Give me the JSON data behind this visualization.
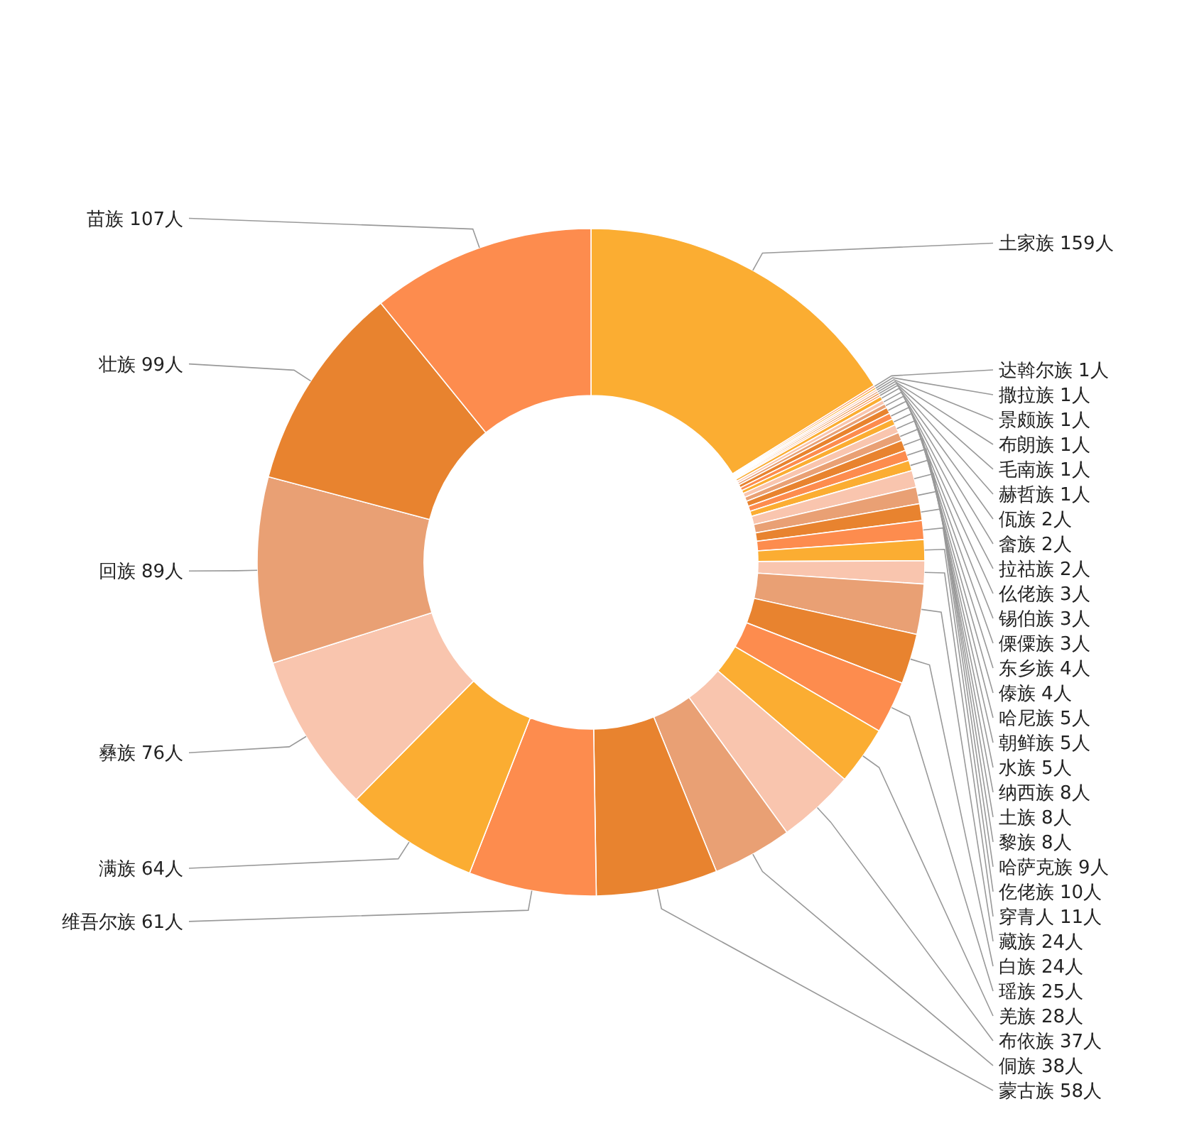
{
  "chart_data": {
    "type": "donut",
    "categories": [
      "土家族",
      "达斡尔族",
      "撒拉族",
      "景颇族",
      "布朗族",
      "毛南族",
      "赫哲族",
      "佤族",
      "畲族",
      "拉祜族",
      "仫佬族",
      "锡伯族",
      "傈僳族",
      "东乡族",
      "傣族",
      "哈尼族",
      "朝鲜族",
      "水族",
      "纳西族",
      "土族",
      "黎族",
      "哈萨克族",
      "仡佬族",
      "穿青人",
      "藏族",
      "白族",
      "瑶族",
      "羌族",
      "布依族",
      "侗族",
      "蒙古族",
      "维吾尔族",
      "满族",
      "彝族",
      "回族",
      "壮族",
      "苗族"
    ],
    "values": [
      159,
      1,
      1,
      1,
      1,
      1,
      1,
      2,
      2,
      2,
      3,
      3,
      3,
      4,
      4,
      5,
      5,
      5,
      8,
      8,
      8,
      9,
      10,
      11,
      24,
      24,
      25,
      28,
      37,
      38,
      58,
      61,
      64,
      76,
      89,
      99,
      107
    ],
    "value_labels": [
      "159人",
      "1人",
      "1人",
      "1人",
      "1人",
      "1人",
      "1人",
      "2人",
      "2人",
      "2人",
      "3人",
      "3人",
      "3人",
      "4人",
      "4人",
      "5人",
      "5人",
      "5人",
      "8人",
      "8人",
      "8人",
      "9人",
      "10人",
      "11人",
      "24人",
      "24人",
      "25人",
      "28人",
      "37人",
      "38人",
      "58人",
      "61人",
      "64人",
      "76人",
      "89人",
      "99人",
      "107人"
    ],
    "colors": [
      "#fbad32",
      "#fd8c4e",
      "#fbad32",
      "#f9c5ae",
      "#e9a074",
      "#e8832f",
      "#fd8c4e",
      "#fbad32",
      "#f9c5ae",
      "#e9a074",
      "#e8832f",
      "#fd8c4e",
      "#fbad32",
      "#f9c5ae",
      "#e9a074",
      "#e8832f",
      "#fd8c4e",
      "#fbad32",
      "#f9c5ae",
      "#e9a074",
      "#e8832f",
      "#fd8c4e",
      "#fbad32",
      "#f9c5ae",
      "#e9a074",
      "#e8832f",
      "#fd8c4e",
      "#fbad32",
      "#f9c5ae",
      "#e9a074",
      "#e8832f",
      "#fd8c4e",
      "#fbad32",
      "#f9c5ae",
      "#e9a074",
      "#e8832f",
      "#fd8c4e"
    ]
  }
}
